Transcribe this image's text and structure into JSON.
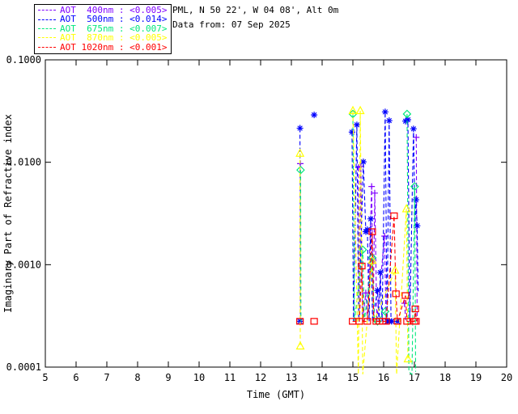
{
  "page": {
    "background": "#ffffff",
    "text_color": "#000000"
  },
  "header": {
    "line1": "PML, N 50 22', W 04 08', Alt 0m",
    "line2": "Data from: 07 Sep 2025"
  },
  "legend": {
    "items": [
      {
        "label": "AOT  400nm : <0.005>",
        "color": "#8000FF"
      },
      {
        "label": "AOT  500nm : <0.014>",
        "color": "#0000FF"
      },
      {
        "label": "AOT  675nm : <0.007>",
        "color": "#00E87C"
      },
      {
        "label": "AOT  870nm : <0.005>",
        "color": "#FFFF00"
      },
      {
        "label": "AOT 1020nm : <0.001>",
        "color": "#FF0000"
      }
    ]
  },
  "chart_data": {
    "type": "line",
    "title": "",
    "xlabel": "Time (GMT)",
    "ylabel": "Imaginary Part of Refractive index",
    "xlim": [
      5,
      20
    ],
    "ylim": [
      0.0001,
      0.1
    ],
    "yscale": "log",
    "grid": false,
    "legend_position": "top-left-outside",
    "x_ticks": [
      5,
      6,
      7,
      8,
      9,
      10,
      11,
      12,
      13,
      14,
      15,
      16,
      17,
      18,
      19,
      20
    ],
    "y_ticks": [
      {
        "v": 0.1,
        "label": "0.1000"
      },
      {
        "v": 0.01,
        "label": "0.0100"
      },
      {
        "v": 0.001,
        "label": "0.0010"
      },
      {
        "v": 0.0001,
        "label": "0.0001"
      }
    ],
    "line_style": "dashed",
    "series": [
      {
        "name": "AOT 400nm",
        "wavelength_nm": 400,
        "aot_value": "<0.005>",
        "color": "#8000FF",
        "marker": "plus",
        "markers": [
          [
            13.29,
            0.0097
          ],
          [
            15.18,
            0.0089
          ],
          [
            15.26,
            0.0091
          ],
          [
            15.42,
            0.00053
          ],
          [
            15.61,
            0.0058
          ],
          [
            15.71,
            0.005
          ],
          [
            16.03,
            0.0019
          ],
          [
            16.68,
            0.00042
          ],
          [
            17.06,
            0.0175
          ]
        ],
        "segments": [
          [
            [
              13.29,
              0.0097
            ],
            [
              13.3,
              0.00028
            ]
          ],
          [
            [
              15.18,
              0.0089
            ],
            [
              15.2,
              0.00028
            ],
            [
              15.26,
              0.0091
            ],
            [
              15.31,
              0.00028
            ],
            [
              15.42,
              0.00053
            ],
            [
              15.47,
              0.00028
            ],
            [
              15.61,
              0.0058
            ],
            [
              15.66,
              0.0003
            ],
            [
              15.71,
              0.005
            ],
            [
              15.78,
              0.00028
            ],
            [
              16.03,
              0.0019
            ],
            [
              16.08,
              0.00028
            ]
          ],
          [
            [
              16.68,
              0.00042
            ],
            [
              16.72,
              0.00028
            ]
          ],
          [
            [
              17.06,
              0.0175
            ],
            [
              17.09,
              0.00028
            ]
          ]
        ]
      },
      {
        "name": "AOT 500nm",
        "wavelength_nm": 500,
        "aot_value": "<0.014>",
        "color": "#0000FF",
        "marker": "asterisk",
        "markers": [
          [
            13.28,
            0.0215
          ],
          [
            13.28,
            0.00028
          ],
          [
            13.74,
            0.029
          ],
          [
            14.97,
            0.0197
          ],
          [
            15.13,
            0.0232
          ],
          [
            15.34,
            0.0101
          ],
          [
            15.42,
            0.0021
          ],
          [
            15.47,
            0.0022
          ],
          [
            15.58,
            0.0028
          ],
          [
            15.8,
            0.00056
          ],
          [
            15.89,
            0.00084
          ],
          [
            16.05,
            0.031
          ],
          [
            16.18,
            0.0255
          ],
          [
            16.11,
            0.00028
          ],
          [
            16.18,
            0.00028
          ],
          [
            16.26,
            0.00028
          ],
          [
            16.45,
            0.00028
          ],
          [
            16.71,
            0.0252
          ],
          [
            16.79,
            0.026
          ],
          [
            16.97,
            0.0212
          ],
          [
            17.05,
            0.0043
          ],
          [
            17.09,
            0.0024
          ]
        ],
        "segments": [
          [
            [
              13.28,
              0.0215
            ],
            [
              13.29,
              0.00028
            ]
          ],
          [
            [
              14.97,
              0.0197
            ],
            [
              15.02,
              0.00028
            ],
            [
              15.13,
              0.0232
            ],
            [
              15.19,
              0.00028
            ],
            [
              15.34,
              0.0101
            ],
            [
              15.42,
              0.0021
            ],
            [
              15.47,
              0.0022
            ],
            [
              15.53,
              0.00028
            ],
            [
              15.58,
              0.0028
            ],
            [
              15.64,
              0.00028
            ],
            [
              15.8,
              0.00056
            ],
            [
              15.85,
              0.00028
            ],
            [
              15.89,
              0.00084
            ],
            [
              15.95,
              0.00028
            ],
            [
              16.05,
              0.031
            ],
            [
              16.11,
              0.00028
            ],
            [
              16.18,
              0.0255
            ],
            [
              16.24,
              0.00028
            ],
            [
              16.32,
              0.00028
            ],
            [
              16.45,
              0.00028
            ]
          ],
          [
            [
              16.71,
              0.0252
            ],
            [
              16.79,
              0.026
            ],
            [
              16.85,
              0.00028
            ],
            [
              16.97,
              0.0212
            ],
            [
              17.02,
              0.0024
            ],
            [
              17.05,
              0.0043
            ],
            [
              17.09,
              0.0024
            ],
            [
              17.12,
              0.00055
            ]
          ]
        ]
      },
      {
        "name": "AOT 675nm",
        "wavelength_nm": 675,
        "aot_value": "<0.007>",
        "color": "#00E87C",
        "marker": "diamond",
        "markers": [
          [
            13.3,
            0.0084
          ],
          [
            15.0,
            0.0296
          ],
          [
            15.32,
            0.0014
          ],
          [
            15.63,
            0.00117
          ],
          [
            15.8,
            0.00028
          ],
          [
            16.05,
            0.00035
          ],
          [
            16.76,
            0.0296
          ],
          [
            17.01,
            0.0058
          ]
        ],
        "segments": [
          [
            [
              13.3,
              0.0084
            ],
            [
              13.31,
              0.00028
            ]
          ],
          [
            [
              15.0,
              0.0296
            ],
            [
              15.05,
              0.00028
            ],
            [
              15.32,
              0.0014
            ],
            [
              15.37,
              0.00028
            ],
            [
              15.63,
              0.00117
            ],
            [
              15.7,
              0.00028
            ],
            [
              15.8,
              0.00028
            ],
            [
              16.05,
              0.00035
            ],
            [
              16.1,
              0.00028
            ]
          ],
          [
            [
              16.76,
              0.0296
            ],
            [
              16.82,
              9e-05
            ],
            [
              16.92,
              8.5e-05
            ],
            [
              17.01,
              0.0058
            ],
            [
              17.04,
              9e-05
            ]
          ]
        ]
      },
      {
        "name": "AOT 870nm",
        "wavelength_nm": 870,
        "aot_value": "<0.005>",
        "color": "#FFFF00",
        "marker": "triangle",
        "markers": [
          [
            13.28,
            0.0122
          ],
          [
            13.29,
            0.00016
          ],
          [
            15.0,
            0.0318
          ],
          [
            15.24,
            0.0318
          ],
          [
            15.63,
            0.0011
          ],
          [
            16.37,
            0.00088
          ],
          [
            16.74,
            0.0035
          ],
          [
            16.79,
            0.00012
          ]
        ],
        "segments": [
          [
            [
              13.28,
              0.0122
            ],
            [
              13.29,
              0.00016
            ]
          ],
          [
            [
              15.0,
              0.0318
            ],
            [
              15.18,
              8.5e-05
            ],
            [
              15.24,
              0.0318
            ],
            [
              15.32,
              8.5e-05
            ],
            [
              15.63,
              0.0011
            ],
            [
              15.68,
              0.00028
            ],
            [
              16.37,
              0.00088
            ],
            [
              16.42,
              8.5e-05
            ],
            [
              16.74,
              0.0035
            ],
            [
              16.79,
              0.00012
            ]
          ]
        ]
      },
      {
        "name": "AOT 1020nm",
        "wavelength_nm": 1020,
        "aot_value": "<0.001>",
        "color": "#FF0000",
        "marker": "square",
        "markers": [
          [
            13.28,
            0.00028
          ],
          [
            13.74,
            0.00028
          ],
          [
            14.99,
            0.00028
          ],
          [
            15.21,
            0.00028
          ],
          [
            15.29,
            0.00097
          ],
          [
            15.47,
            0.00028
          ],
          [
            15.63,
            0.0021
          ],
          [
            15.76,
            0.00028
          ],
          [
            15.87,
            0.00028
          ],
          [
            15.97,
            0.00028
          ],
          [
            16.08,
            0.00028
          ],
          [
            16.34,
            0.003
          ],
          [
            16.4,
            0.00052
          ],
          [
            16.45,
            0.00028
          ],
          [
            16.71,
            0.0005
          ],
          [
            16.76,
            0.00028
          ],
          [
            17.0,
            0.00028
          ],
          [
            17.03,
            0.00037
          ],
          [
            17.05,
            0.00028
          ]
        ],
        "segments": [
          [
            [
              14.99,
              0.00028
            ],
            [
              15.21,
              0.00028
            ],
            [
              15.29,
              0.00097
            ],
            [
              15.34,
              0.00028
            ],
            [
              15.47,
              0.00028
            ],
            [
              15.63,
              0.0021
            ],
            [
              15.68,
              0.00028
            ],
            [
              15.76,
              0.00028
            ],
            [
              15.87,
              0.00028
            ],
            [
              15.97,
              0.00028
            ],
            [
              16.08,
              0.00028
            ],
            [
              16.34,
              0.003
            ],
            [
              16.4,
              0.00052
            ],
            [
              16.45,
              0.00028
            ],
            [
              16.71,
              0.0005
            ],
            [
              16.76,
              0.00028
            ],
            [
              17.0,
              0.00028
            ],
            [
              17.03,
              0.00037
            ],
            [
              17.07,
              0.00028
            ]
          ]
        ]
      }
    ]
  }
}
